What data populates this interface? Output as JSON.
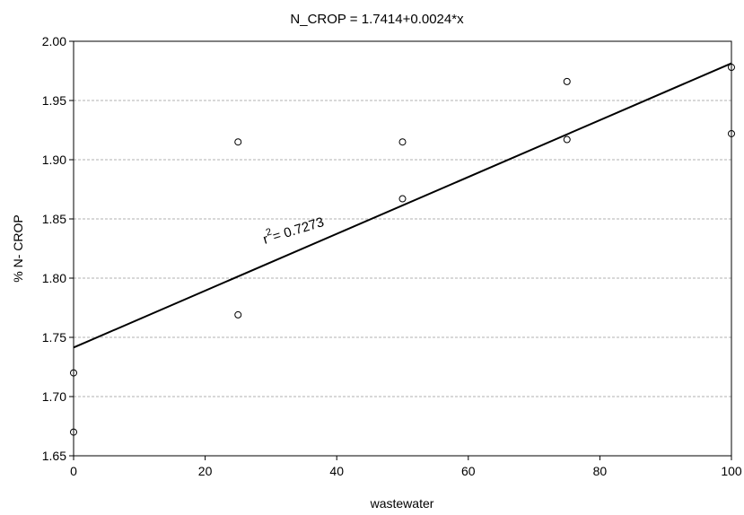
{
  "chart_data": {
    "type": "scatter",
    "title": "N_CROP = 1.7414+0.0024*x",
    "xlabel": "wastewater",
    "ylabel": "% N- CROP",
    "xlim": [
      0,
      100
    ],
    "ylim": [
      1.65,
      2.0
    ],
    "x_ticks": [
      "0",
      "20",
      "40",
      "60",
      "80",
      "100"
    ],
    "y_ticks": [
      "1.65",
      "1.70",
      "1.75",
      "1.80",
      "1.85",
      "1.90",
      "1.95",
      "2.00"
    ],
    "grid": "horizontal dashed",
    "points": [
      {
        "x": 0,
        "y": 1.72
      },
      {
        "x": 0,
        "y": 1.67
      },
      {
        "x": 25,
        "y": 1.915
      },
      {
        "x": 25,
        "y": 1.769
      },
      {
        "x": 50,
        "y": 1.915
      },
      {
        "x": 50,
        "y": 1.867
      },
      {
        "x": 75,
        "y": 1.966
      },
      {
        "x": 75,
        "y": 1.917
      },
      {
        "x": 100,
        "y": 1.978
      },
      {
        "x": 100,
        "y": 1.922
      }
    ],
    "regression": {
      "intercept": 1.7414,
      "slope": 0.0024
    },
    "annotation": {
      "r_label": "r",
      "exponent": "2",
      "value_label": "=  0.7273"
    },
    "colors": {
      "line": "#000000",
      "grid": "#b0b0b0",
      "marker_edge": "#000000"
    }
  }
}
